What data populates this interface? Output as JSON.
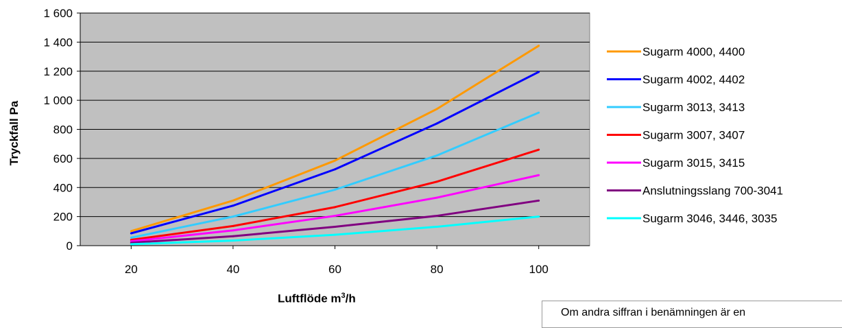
{
  "chart_data": {
    "type": "line",
    "title": "",
    "xlabel_main": "Luftflöde m",
    "xlabel_sup": "3",
    "xlabel_tail": "/h",
    "ylabel": "Tryckfall Pa",
    "xlim": [
      10,
      110
    ],
    "ylim": [
      0,
      1600
    ],
    "x_ticks": [
      "20",
      "40",
      "60",
      "80",
      "100"
    ],
    "y_ticks": [
      "0",
      "200",
      "400",
      "600",
      "800",
      "1 000",
      "1 200",
      "1 400",
      "1 600"
    ],
    "grid": "horizontal",
    "plot_background": "#c0c0c0",
    "legend_position": "right",
    "x": [
      20,
      40,
      60,
      80,
      100
    ],
    "series": [
      {
        "name": "Sugarm 4000, 4400",
        "color": "#ff9900",
        "values": [
          100,
          310,
          585,
          940,
          1375
        ]
      },
      {
        "name": "Sugarm 4002, 4402",
        "color": "#0000ff",
        "values": [
          85,
          275,
          525,
          840,
          1195
        ]
      },
      {
        "name": "Sugarm 3013, 3413",
        "color": "#33ccff",
        "values": [
          55,
          200,
          385,
          620,
          915
        ]
      },
      {
        "name": "Sugarm 3007, 3407",
        "color": "#ff0000",
        "values": [
          40,
          135,
          265,
          440,
          660
        ]
      },
      {
        "name": "Sugarm 3015, 3415",
        "color": "#ff00ff",
        "values": [
          30,
          105,
          205,
          330,
          485
        ]
      },
      {
        "name": "Anslutningsslang 700-3041",
        "color": "#800080",
        "values": [
          20,
          65,
          130,
          205,
          310
        ]
      },
      {
        "name": "Sugarm 3046, 3446, 3035",
        "color": "#00ffff",
        "values": [
          10,
          35,
          75,
          130,
          200
        ]
      }
    ]
  },
  "note": {
    "text": "Om andra siffran i benämningen är en"
  }
}
